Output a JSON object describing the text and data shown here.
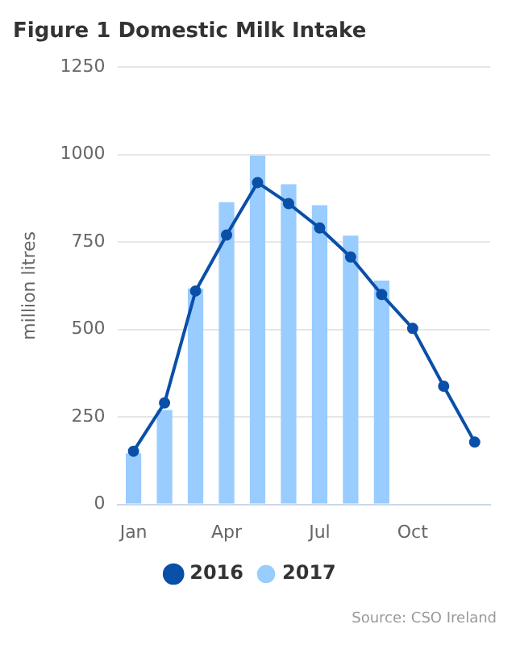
{
  "chart_data": {
    "type": "bar",
    "title": "Figure 1 Domestic Milk Intake",
    "ylabel": "million litres",
    "categories": [
      "Jan",
      null,
      null,
      "Apr",
      null,
      null,
      "Jul",
      null,
      null,
      "Oct",
      null,
      null
    ],
    "series": [
      {
        "name": "2016",
        "type": "line",
        "color": "#0a4fa8",
        "values": [
          152,
          290,
          610,
          770,
          920,
          860,
          790,
          707,
          600,
          503,
          338,
          178
        ]
      },
      {
        "name": "2017",
        "color": "#99ccff",
        "values": [
          146,
          270,
          617,
          864,
          997,
          915,
          855,
          768,
          640,
          null,
          null,
          null
        ]
      }
    ],
    "ylim": [
      0,
      1250
    ],
    "yticks": [
      0,
      250,
      500,
      750,
      1000,
      1250
    ],
    "grid": "y",
    "legend": "bottom",
    "marker": "circle",
    "annotations": [
      "Source: CSO Ireland"
    ]
  }
}
